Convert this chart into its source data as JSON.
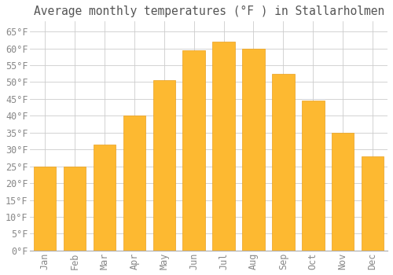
{
  "title": "Average monthly temperatures (°F ) in Stallarholmen",
  "months": [
    "Jan",
    "Feb",
    "Mar",
    "Apr",
    "May",
    "Jun",
    "Jul",
    "Aug",
    "Sep",
    "Oct",
    "Nov",
    "Dec"
  ],
  "values": [
    25,
    25,
    31.5,
    40,
    50.5,
    59.5,
    62,
    60,
    52.5,
    44.5,
    35,
    28
  ],
  "bar_color": "#FDB931",
  "bar_edge_color": "#E8A020",
  "background_color": "#FFFFFF",
  "grid_color": "#CCCCCC",
  "ylim": [
    0,
    68
  ],
  "yticks": [
    0,
    5,
    10,
    15,
    20,
    25,
    30,
    35,
    40,
    45,
    50,
    55,
    60,
    65
  ],
  "ylabel_suffix": "°F",
  "title_fontsize": 10.5,
  "tick_fontsize": 8.5,
  "font_family": "monospace"
}
